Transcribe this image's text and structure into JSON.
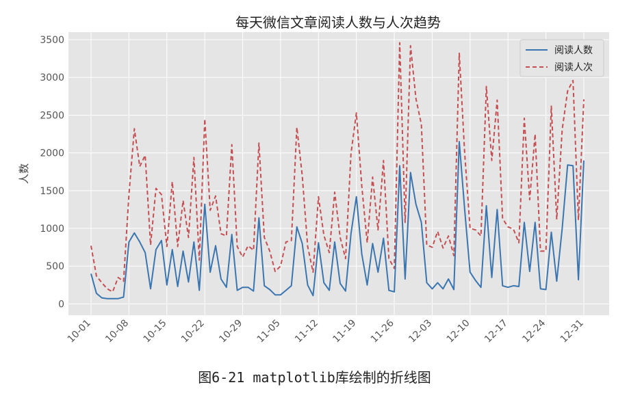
{
  "figure": {
    "caption": "图6-21  matplotlib库绘制的折线图"
  },
  "chart_data": {
    "type": "line",
    "title": "每天微信文章阅读人数与人次趋势",
    "xlabel": "",
    "ylabel": "人数",
    "ylim": [
      -150,
      3600
    ],
    "yticks": [
      0,
      500,
      1000,
      1500,
      2000,
      2500,
      3000,
      3500
    ],
    "xtick_labels": [
      "10-01",
      "10-08",
      "10-15",
      "10-22",
      "10-29",
      "11-05",
      "11-12",
      "11-19",
      "11-26",
      "12-03",
      "12-10",
      "12-17",
      "12-24",
      "12-31"
    ],
    "x": [
      "10-01",
      "10-02",
      "10-03",
      "10-04",
      "10-05",
      "10-06",
      "10-07",
      "10-08",
      "10-09",
      "10-10",
      "10-11",
      "10-12",
      "10-13",
      "10-14",
      "10-15",
      "10-16",
      "10-17",
      "10-18",
      "10-19",
      "10-20",
      "10-21",
      "10-22",
      "10-23",
      "10-24",
      "10-25",
      "10-26",
      "10-27",
      "10-28",
      "10-29",
      "10-30",
      "10-31",
      "11-01",
      "11-02",
      "11-03",
      "11-04",
      "11-05",
      "11-06",
      "11-07",
      "11-08",
      "11-09",
      "11-10",
      "11-11",
      "11-12",
      "11-13",
      "11-14",
      "11-15",
      "11-16",
      "11-17",
      "11-18",
      "11-19",
      "11-20",
      "11-21",
      "11-22",
      "11-23",
      "11-24",
      "11-25",
      "11-26",
      "11-27",
      "11-28",
      "11-29",
      "11-30",
      "12-01",
      "12-02",
      "12-03",
      "12-04",
      "12-05",
      "12-06",
      "12-07",
      "12-08",
      "12-09",
      "12-10",
      "12-11",
      "12-12",
      "12-13",
      "12-14",
      "12-15",
      "12-16",
      "12-17",
      "12-18",
      "12-19",
      "12-20",
      "12-21",
      "12-22",
      "12-23",
      "12-24",
      "12-25",
      "12-26",
      "12-27",
      "12-28",
      "12-29",
      "12-30",
      "12-31"
    ],
    "grid": true,
    "legend_position": "top-right",
    "background": "#e5e5e5",
    "series": [
      {
        "name": "阅读人数",
        "color": "#3a75b0",
        "style": "solid",
        "values": [
          400,
          140,
          80,
          70,
          70,
          70,
          90,
          820,
          940,
          820,
          680,
          200,
          720,
          840,
          250,
          720,
          230,
          700,
          290,
          820,
          180,
          1320,
          420,
          770,
          330,
          220,
          920,
          180,
          220,
          220,
          170,
          1140,
          240,
          190,
          120,
          120,
          180,
          240,
          1020,
          800,
          250,
          110,
          810,
          280,
          180,
          820,
          270,
          170,
          930,
          1420,
          660,
          250,
          800,
          420,
          870,
          180,
          160,
          1830,
          330,
          1740,
          1320,
          1080,
          280,
          200,
          280,
          200,
          330,
          190,
          2150,
          1250,
          420,
          310,
          220,
          1300,
          350,
          1250,
          240,
          220,
          240,
          230,
          1080,
          430,
          1080,
          200,
          190,
          950,
          300,
          1000,
          1840,
          1830,
          320,
          1900
        ]
      },
      {
        "name": "阅读人次",
        "color": "#c44e52",
        "style": "dashed",
        "values": [
          770,
          370,
          280,
          200,
          160,
          350,
          300,
          1450,
          2320,
          1820,
          1970,
          780,
          1530,
          1450,
          760,
          1620,
          760,
          1370,
          880,
          1940,
          580,
          2450,
          1240,
          1430,
          930,
          900,
          2110,
          760,
          620,
          770,
          710,
          2130,
          880,
          700,
          430,
          500,
          820,
          840,
          2340,
          1700,
          760,
          420,
          1420,
          910,
          680,
          1480,
          880,
          600,
          1990,
          2530,
          1560,
          810,
          1680,
          980,
          1900,
          600,
          470,
          3460,
          1080,
          3420,
          2720,
          2380,
          780,
          750,
          960,
          740,
          900,
          640,
          3320,
          2000,
          1000,
          980,
          900,
          2880,
          1900,
          2700,
          1130,
          1020,
          990,
          810,
          2460,
          1380,
          2250,
          700,
          700,
          2620,
          1120,
          2310,
          2820,
          2960,
          1110,
          2710
        ]
      }
    ]
  }
}
